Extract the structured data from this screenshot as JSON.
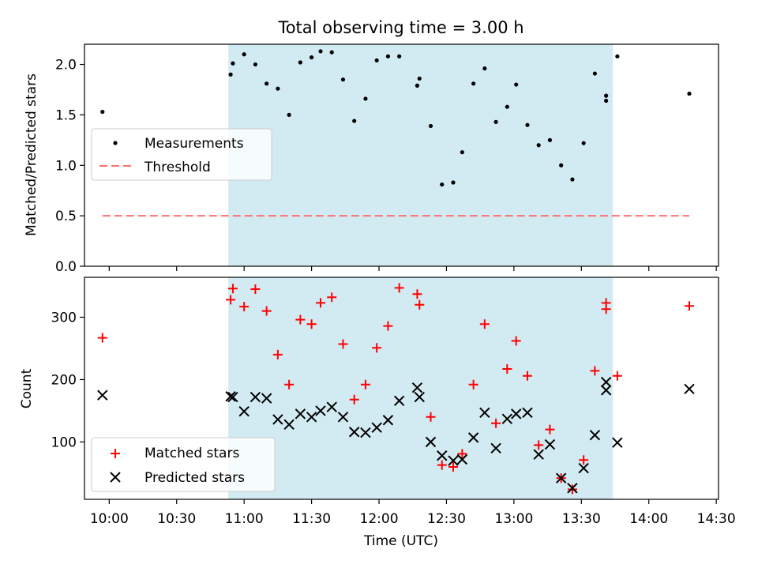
{
  "figure_title": "Total observing time = 3.00 h",
  "colors": {
    "span": "#add8e6",
    "threshold": "#ff7070",
    "matched": "#ff0000",
    "predicted": "#000000",
    "measurement": "#000000"
  },
  "chart_data": [
    {
      "type": "scatter",
      "ylabel": "Matched/Predicted stars",
      "xlabel": "",
      "ylim": [
        0,
        2.2
      ],
      "xlim": [
        "09:49",
        "14:31"
      ],
      "yticks": [
        0.0,
        0.5,
        1.0,
        1.5,
        2.0
      ],
      "ytick_labels": [
        "0.0",
        "0.5",
        "1.0",
        "1.5",
        "2.0"
      ],
      "shaded_span": [
        "10:53",
        "13:44"
      ],
      "legend": {
        "placement": "center-left",
        "entries": [
          "Measurements",
          "Threshold"
        ]
      },
      "threshold": {
        "name": "Threshold",
        "x": [
          "09:57",
          "14:18"
        ],
        "y": 0.5
      },
      "series": [
        {
          "name": "Measurements",
          "points": [
            [
              "09:57",
              1.53
            ],
            [
              "10:54",
              1.9
            ],
            [
              "10:55",
              2.01
            ],
            [
              "11:00",
              2.1
            ],
            [
              "11:05",
              2.0
            ],
            [
              "11:10",
              1.81
            ],
            [
              "11:15",
              1.76
            ],
            [
              "11:20",
              1.5
            ],
            [
              "11:25",
              2.02
            ],
            [
              "11:30",
              2.07
            ],
            [
              "11:34",
              2.13
            ],
            [
              "11:39",
              2.12
            ],
            [
              "11:44",
              1.85
            ],
            [
              "11:49",
              1.44
            ],
            [
              "11:54",
              1.66
            ],
            [
              "11:59",
              2.04
            ],
            [
              "12:04",
              2.08
            ],
            [
              "12:09",
              2.08
            ],
            [
              "12:17",
              1.79
            ],
            [
              "12:18",
              1.86
            ],
            [
              "12:23",
              1.39
            ],
            [
              "12:28",
              0.81
            ],
            [
              "12:33",
              0.83
            ],
            [
              "12:37",
              1.13
            ],
            [
              "12:42",
              1.81
            ],
            [
              "12:47",
              1.96
            ],
            [
              "12:52",
              1.43
            ],
            [
              "12:57",
              1.58
            ],
            [
              "13:01",
              1.8
            ],
            [
              "13:06",
              1.4
            ],
            [
              "13:11",
              1.2
            ],
            [
              "13:16",
              1.25
            ],
            [
              "13:21",
              1.0
            ],
            [
              "13:26",
              0.86
            ],
            [
              "13:31",
              1.22
            ],
            [
              "13:36",
              1.91
            ],
            [
              "13:41",
              1.69
            ],
            [
              "13:41",
              1.64
            ],
            [
              "13:46",
              2.08
            ],
            [
              "14:18",
              1.71
            ]
          ]
        }
      ]
    },
    {
      "type": "scatter",
      "ylabel": "Count",
      "xlabel": "Time (UTC)",
      "ylim": [
        8,
        364
      ],
      "xlim": [
        "09:49",
        "14:31"
      ],
      "yticks": [
        100,
        200,
        300
      ],
      "ytick_labels": [
        "100",
        "200",
        "300"
      ],
      "xtick_labels": [
        "10:00",
        "10:30",
        "11:00",
        "11:30",
        "12:00",
        "12:30",
        "13:00",
        "13:30",
        "14:00",
        "14:30"
      ],
      "shaded_span": [
        "10:53",
        "13:44"
      ],
      "legend": {
        "placement": "lower-left",
        "entries": [
          "Matched stars",
          "Predicted stars"
        ]
      },
      "series": [
        {
          "name": "Matched stars",
          "marker": "+",
          "points": [
            [
              "09:57",
              267
            ],
            [
              "10:54",
              328
            ],
            [
              "10:55",
              346
            ],
            [
              "11:00",
              317
            ],
            [
              "11:05",
              345
            ],
            [
              "11:10",
              310
            ],
            [
              "11:15",
              240
            ],
            [
              "11:20",
              192
            ],
            [
              "11:25",
              296
            ],
            [
              "11:30",
              289
            ],
            [
              "11:34",
              323
            ],
            [
              "11:39",
              332
            ],
            [
              "11:44",
              257
            ],
            [
              "11:49",
              168
            ],
            [
              "11:54",
              192
            ],
            [
              "11:59",
              251
            ],
            [
              "12:04",
              286
            ],
            [
              "12:09",
              347
            ],
            [
              "12:17",
              337
            ],
            [
              "12:18",
              320
            ],
            [
              "12:23",
              140
            ],
            [
              "12:28",
              63
            ],
            [
              "12:33",
              60
            ],
            [
              "12:37",
              81
            ],
            [
              "12:42",
              192
            ],
            [
              "12:47",
              289
            ],
            [
              "12:52",
              130
            ],
            [
              "12:57",
              217
            ],
            [
              "13:01",
              262
            ],
            [
              "13:06",
              206
            ],
            [
              "13:11",
              95
            ],
            [
              "13:16",
              120
            ],
            [
              "13:21",
              42
            ],
            [
              "13:26",
              24
            ],
            [
              "13:31",
              71
            ],
            [
              "13:36",
              214
            ],
            [
              "13:41",
              323
            ],
            [
              "13:41",
              313
            ],
            [
              "13:46",
              206
            ],
            [
              "14:18",
              318
            ]
          ]
        },
        {
          "name": "Predicted stars",
          "marker": "x",
          "points": [
            [
              "09:57",
              175
            ],
            [
              "10:54",
              173
            ],
            [
              "10:55",
              172
            ],
            [
              "11:00",
              149
            ],
            [
              "11:05",
              172
            ],
            [
              "11:10",
              170
            ],
            [
              "11:15",
              136
            ],
            [
              "11:20",
              128
            ],
            [
              "11:25",
              145
            ],
            [
              "11:30",
              140
            ],
            [
              "11:34",
              150
            ],
            [
              "11:39",
              156
            ],
            [
              "11:44",
              140
            ],
            [
              "11:49",
              116
            ],
            [
              "11:54",
              115
            ],
            [
              "11:59",
              123
            ],
            [
              "12:04",
              135
            ],
            [
              "12:09",
              166
            ],
            [
              "12:17",
              187
            ],
            [
              "12:18",
              172
            ],
            [
              "12:23",
              100
            ],
            [
              "12:28",
              78
            ],
            [
              "12:33",
              70
            ],
            [
              "12:37",
              72
            ],
            [
              "12:42",
              107
            ],
            [
              "12:47",
              147
            ],
            [
              "12:52",
              90
            ],
            [
              "12:57",
              137
            ],
            [
              "13:01",
              145
            ],
            [
              "13:06",
              147
            ],
            [
              "13:11",
              80
            ],
            [
              "13:16",
              96
            ],
            [
              "13:21",
              42
            ],
            [
              "13:26",
              26
            ],
            [
              "13:31",
              58
            ],
            [
              "13:36",
              111
            ],
            [
              "13:41",
              196
            ],
            [
              "13:41",
              183
            ],
            [
              "13:46",
              99
            ],
            [
              "14:18",
              185
            ]
          ]
        }
      ]
    }
  ]
}
